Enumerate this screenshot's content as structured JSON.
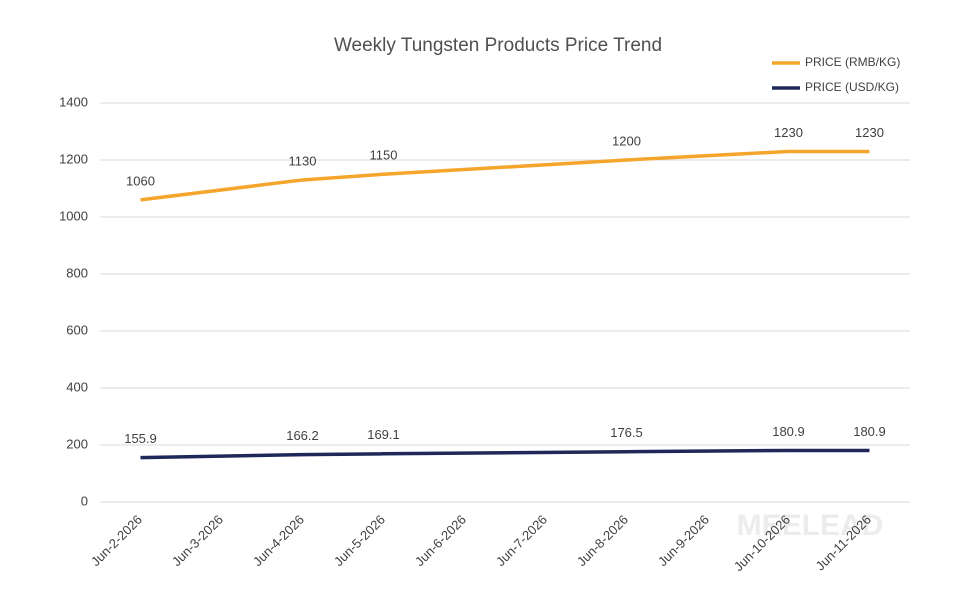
{
  "chart_data": {
    "type": "line",
    "title": "Weekly Tungsten Products Price Trend",
    "x": [
      "Jun-2-2026",
      "Jun-4-2026",
      "Jun-5-2026",
      "Jun-8-2026",
      "Jun-10-2026",
      "Jun-11-2026"
    ],
    "xticks": [
      "Jun-2-2026",
      "Jun-3-2026",
      "Jun-4-2026",
      "Jun-5-2026",
      "Jun-6-2026",
      "Jun-7-2026",
      "Jun-8-2026",
      "Jun-9-2026",
      "Jun-10-2026",
      "Jun-11-2026"
    ],
    "series": [
      {
        "name": "PRICE (RMB/KG)",
        "color": "#f5a52b",
        "values": [
          1060,
          1130,
          1150,
          1200,
          1230,
          1230
        ]
      },
      {
        "name": "PRICE (USD/KG)",
        "color": "#1f2858",
        "values": [
          155.9,
          166.2,
          169.1,
          176.5,
          180.9,
          180.9
        ]
      }
    ],
    "ylim": [
      0,
      1400
    ],
    "yticks": [
      0,
      200,
      400,
      600,
      800,
      1000,
      1200,
      1400
    ],
    "grid": true,
    "legend": "top-right",
    "watermark": "MEELEAD"
  }
}
